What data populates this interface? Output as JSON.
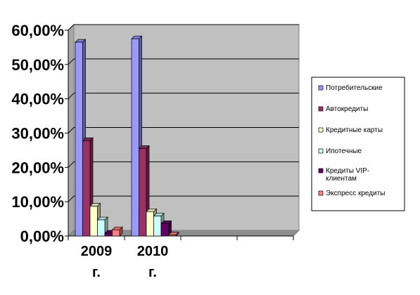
{
  "chart_data": {
    "type": "bar",
    "categories": [
      "2009 г.",
      "2010 г.",
      "",
      ""
    ],
    "series": [
      {
        "name": "Потребительские",
        "values": [
          56.5,
          57.5,
          null,
          null
        ],
        "color": "#9999ff"
      },
      {
        "name": "Автокредиты",
        "values": [
          27.8,
          25.5,
          null,
          null
        ],
        "color": "#993366"
      },
      {
        "name": "Кредитные карты",
        "values": [
          8.7,
          7.1,
          null,
          null
        ],
        "color": "#ffffcc"
      },
      {
        "name": "Ипотечные",
        "values": [
          4.7,
          5.8,
          null,
          null
        ],
        "color": "#ccffff"
      },
      {
        "name": "Кредиты VIP-клиентам",
        "values": [
          0.8,
          3.6,
          null,
          null
        ],
        "color": "#660066"
      },
      {
        "name": "Экспресс кредиты",
        "values": [
          1.8,
          0.3,
          null,
          null
        ],
        "color": "#ff8080"
      }
    ],
    "legend_entries": [
      "Потребительские",
      "Автокредиты",
      "Кредитные карты",
      "Ипотечные",
      "Кредиты VIP-клиентам",
      "Экспресс кредиты"
    ],
    "y_ticks": [
      "0,00%",
      "10,00%",
      "20,00%",
      "30,00%",
      "40,00%",
      "50,00%",
      "60,00%"
    ],
    "ylim": [
      0,
      60
    ],
    "grid": true,
    "legend_position": "right",
    "title": "",
    "xlabel": "",
    "ylabel": "",
    "plot_background": "#c0c0c0"
  }
}
